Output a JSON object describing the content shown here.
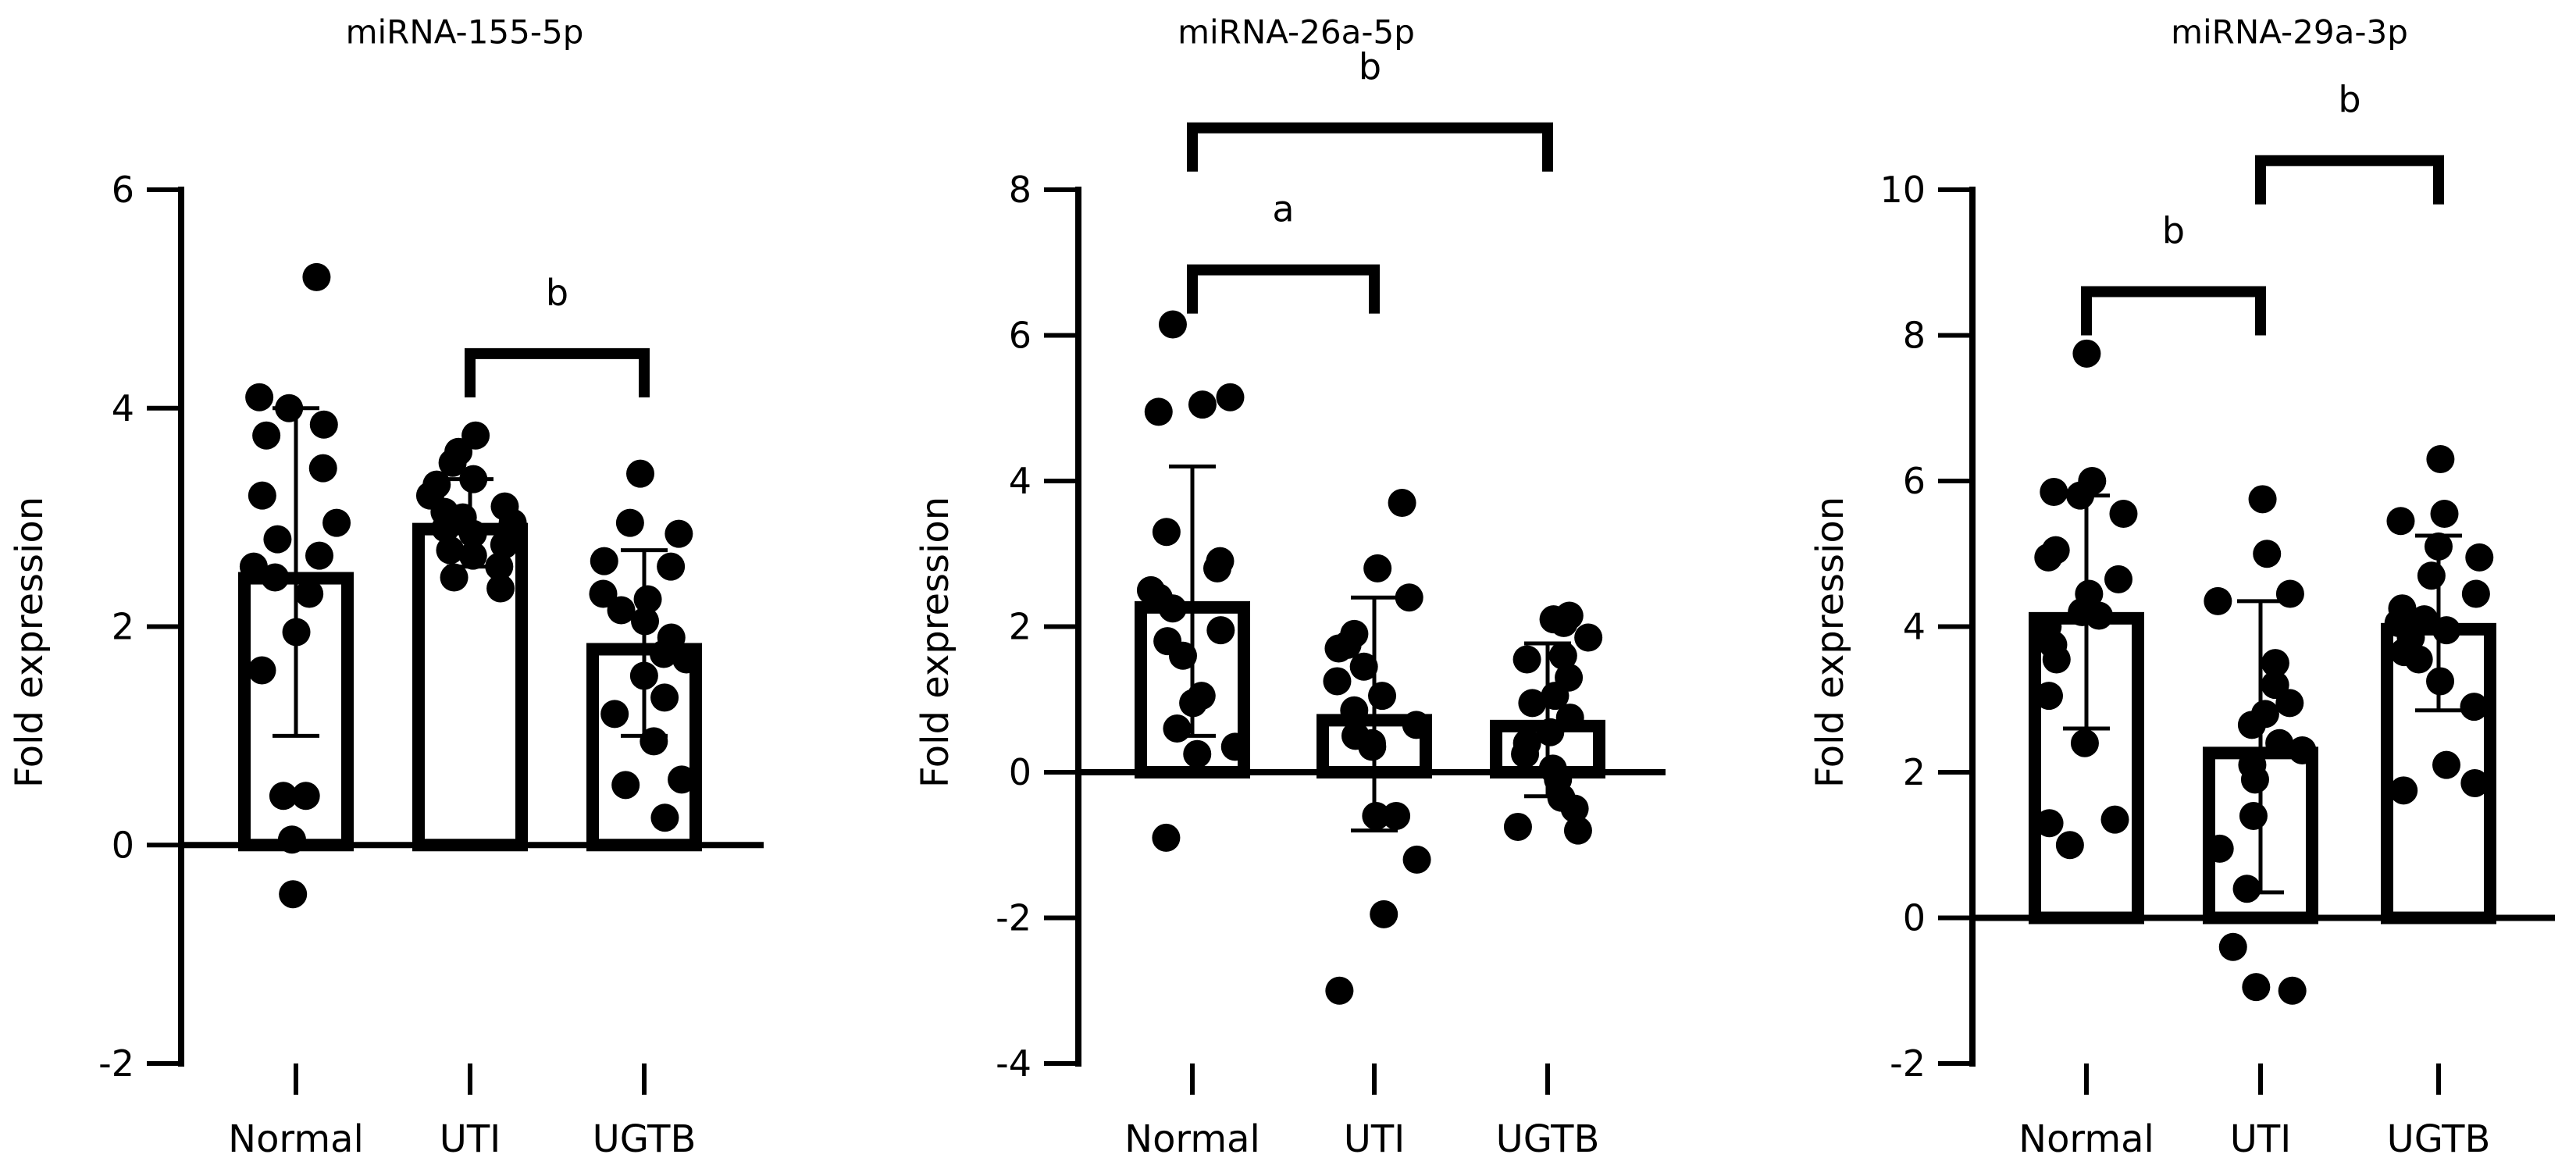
{
  "figure": {
    "background": "#ffffff",
    "ink": "#000000",
    "bar_fill": "#ffffff"
  },
  "chart_data": [
    {
      "type": "bar",
      "title": "miRNA-155-5p",
      "ylabel": "Fold expression",
      "xlabel": "",
      "ylim": [
        -2,
        6
      ],
      "yticks": [
        -2,
        0,
        2,
        4,
        6
      ],
      "categories": [
        "Normal",
        "UTI",
        "UGTB"
      ],
      "means": [
        2.5,
        2.95,
        1.85
      ],
      "sd": [
        1.5,
        0.4,
        0.85
      ],
      "points": [
        [
          5.2,
          4.1,
          4.0,
          3.85,
          3.75,
          3.45,
          3.2,
          2.95,
          2.8,
          2.65,
          2.55,
          2.45,
          2.3,
          1.95,
          1.6,
          0.45,
          0.45,
          0.05,
          -0.45
        ],
        [
          3.75,
          3.6,
          3.5,
          3.35,
          3.3,
          3.2,
          3.1,
          3.05,
          3.0,
          2.95,
          2.9,
          2.85,
          2.8,
          2.75,
          2.7,
          2.65,
          2.55,
          2.45,
          2.35
        ],
        [
          3.4,
          2.95,
          2.85,
          2.6,
          2.55,
          2.3,
          2.25,
          2.15,
          2.05,
          1.9,
          1.75,
          1.7,
          1.55,
          1.35,
          1.2,
          0.95,
          0.6,
          0.55,
          0.25
        ]
      ],
      "significance": [
        {
          "from": 1,
          "to": 2,
          "label": "b",
          "y": 4.5
        }
      ],
      "grid": false,
      "legend": "none"
    },
    {
      "type": "bar",
      "title": "miRNA-26a-5p",
      "ylabel": "Fold expression",
      "xlabel": "",
      "ylim": [
        -4,
        8
      ],
      "yticks": [
        -4,
        -2,
        0,
        2,
        4,
        6,
        8
      ],
      "categories": [
        "Normal",
        "UTI",
        "UGTB"
      ],
      "means": [
        2.35,
        0.8,
        0.72
      ],
      "sd": [
        1.85,
        1.6,
        1.05
      ],
      "points": [
        [
          6.15,
          5.15,
          5.05,
          4.95,
          3.3,
          2.9,
          2.8,
          2.5,
          2.4,
          2.25,
          1.95,
          1.8,
          1.6,
          1.05,
          0.95,
          0.6,
          0.35,
          0.25,
          -0.9
        ],
        [
          3.7,
          2.8,
          2.4,
          1.9,
          1.75,
          1.7,
          1.45,
          1.25,
          1.05,
          0.85,
          0.65,
          0.5,
          0.4,
          0.35,
          -0.6,
          -0.6,
          -1.2,
          -1.95,
          -3.0
        ],
        [
          2.15,
          2.1,
          2.05,
          1.85,
          1.6,
          1.55,
          1.3,
          1.05,
          0.95,
          0.75,
          0.55,
          0.4,
          0.25,
          0.05,
          -0.1,
          -0.35,
          -0.5,
          -0.75,
          -0.8
        ]
      ],
      "significance": [
        {
          "from": 0,
          "to": 1,
          "label": "a",
          "y": 6.9
        },
        {
          "from": 0,
          "to": 2,
          "label": "b",
          "y": 8.85
        }
      ],
      "grid": false,
      "legend": "none"
    },
    {
      "type": "bar",
      "title": "miRNA-29a-3p",
      "ylabel": "Fold expression",
      "xlabel": "",
      "ylim": [
        -2,
        10
      ],
      "yticks": [
        -2,
        0,
        2,
        4,
        6,
        8,
        10
      ],
      "categories": [
        "Normal",
        "UTI",
        "UGTB"
      ],
      "means": [
        4.2,
        2.35,
        4.05
      ],
      "sd": [
        1.6,
        2.0,
        1.2
      ],
      "points": [
        [
          7.75,
          6.0,
          5.85,
          5.8,
          5.55,
          5.05,
          4.95,
          4.65,
          4.45,
          4.2,
          4.15,
          4.0,
          3.75,
          3.55,
          3.05,
          2.4,
          1.35,
          1.3,
          1.0
        ],
        [
          5.75,
          5.0,
          4.45,
          4.35,
          3.5,
          3.2,
          2.95,
          2.8,
          2.65,
          2.4,
          2.3,
          2.1,
          1.9,
          1.4,
          0.95,
          0.4,
          -0.4,
          -0.95,
          -1.0
        ],
        [
          6.3,
          5.55,
          5.45,
          5.1,
          4.95,
          4.7,
          4.45,
          4.25,
          4.1,
          4.05,
          3.95,
          3.85,
          3.65,
          3.55,
          3.25,
          2.9,
          2.1,
          1.85,
          1.75
        ]
      ],
      "significance": [
        {
          "from": 0,
          "to": 1,
          "label": "b",
          "y": 8.6
        },
        {
          "from": 1,
          "to": 2,
          "label": "b",
          "y": 10.4
        }
      ],
      "grid": false,
      "legend": "none"
    }
  ]
}
